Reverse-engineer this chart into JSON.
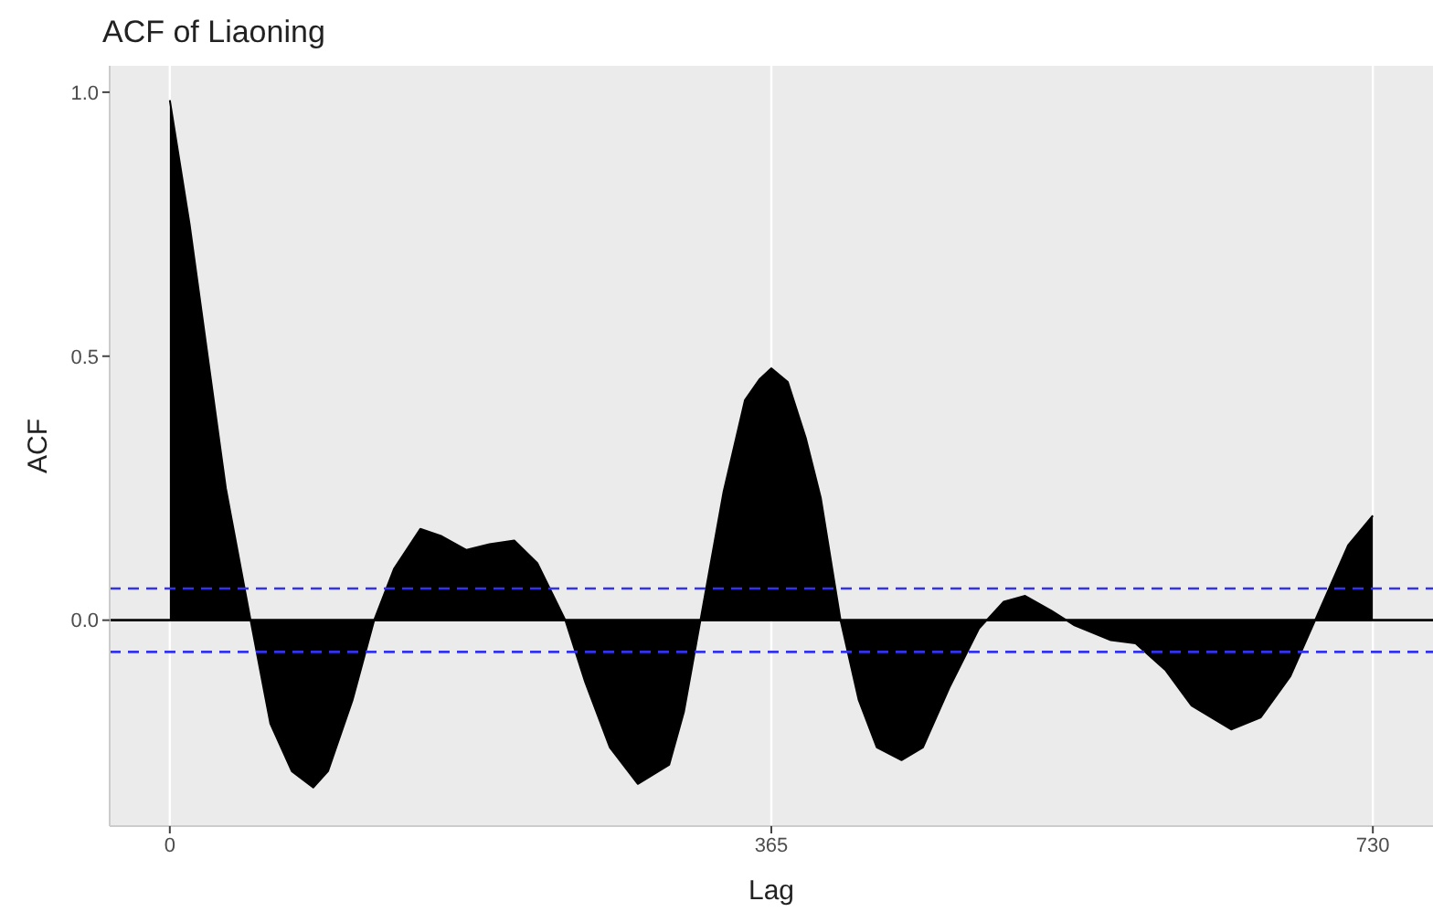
{
  "chart_data": {
    "type": "area",
    "title": "ACF of Liaoning",
    "xlabel": "Lag",
    "ylabel": "ACF",
    "x": [
      0,
      12,
      23,
      34,
      49,
      61,
      74,
      87,
      96,
      111,
      124,
      136,
      152,
      165,
      180,
      194,
      209,
      223,
      240,
      252,
      267,
      284,
      303,
      312,
      322,
      336,
      349,
      358,
      365,
      375,
      386,
      395,
      407,
      418,
      429,
      444,
      457,
      473,
      491,
      506,
      519,
      535,
      549,
      571,
      586,
      604,
      620,
      644,
      662,
      680,
      695,
      715,
      730
    ],
    "series": [
      {
        "color": "#000000",
        "values": [
          0.985,
          0.75,
          0.5,
          0.25,
          0,
          -0.196,
          -0.286,
          -0.317,
          -0.286,
          -0.15,
          0,
          0.097,
          0.173,
          0.159,
          0.133,
          0.144,
          0.151,
          0.108,
          0,
          -0.117,
          -0.241,
          -0.31,
          -0.274,
          -0.173,
          0,
          0.243,
          0.417,
          0.457,
          0.477,
          0.451,
          0.344,
          0.232,
          0,
          -0.151,
          -0.241,
          -0.265,
          -0.241,
          -0.128,
          -0.016,
          0.035,
          0.046,
          0.018,
          -0.01,
          -0.038,
          -0.044,
          -0.094,
          -0.162,
          -0.207,
          -0.184,
          -0.106,
          0,
          0.142,
          0.198
        ]
      }
    ],
    "xlim": [
      -36.5,
      766.5
    ],
    "xticks": [
      0,
      365,
      730
    ],
    "ylim": [
      -0.39,
      1.05
    ],
    "yticks": [
      {
        "value": 0,
        "label": "0.0"
      },
      {
        "value": 0.5,
        "label": "0.5"
      },
      {
        "value": 1,
        "label": "1.0"
      }
    ],
    "ref_lines": [
      {
        "axis": "y",
        "value": 0,
        "color": "#000000",
        "line_style": "solid"
      },
      {
        "axis": "y",
        "value": 0.06,
        "color": "#3333ee",
        "line_style": "dashed"
      },
      {
        "axis": "y",
        "value": -0.06,
        "color": "#3333ee",
        "line_style": "dashed"
      }
    ],
    "grid": true,
    "legend": false
  }
}
